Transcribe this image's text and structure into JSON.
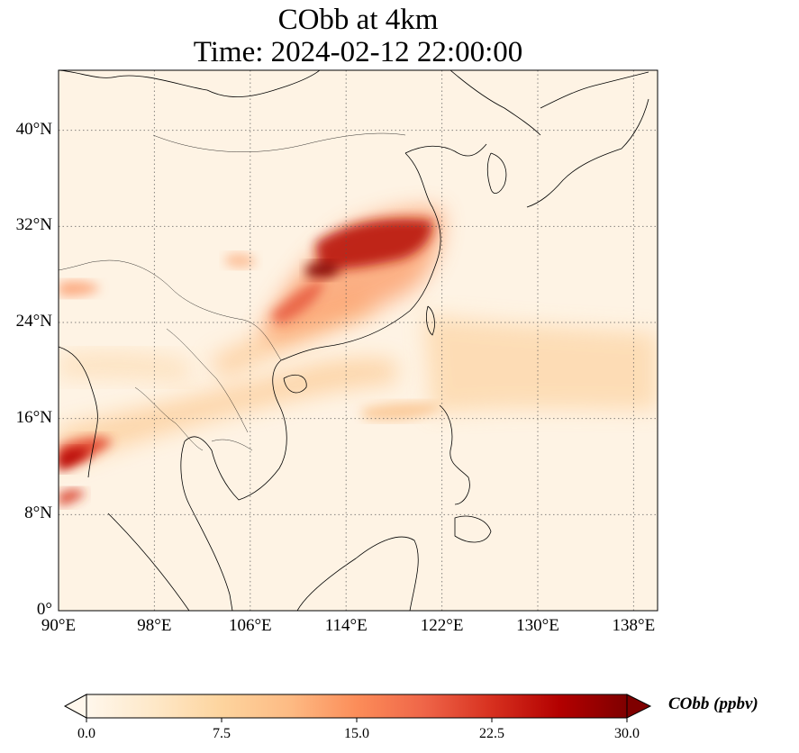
{
  "map": {
    "title_line1": "CObb at 4km",
    "title_line2": "Time: 2024-02-12 22:00:00",
    "lon_range": [
      90,
      140
    ],
    "lat_range": [
      0,
      45
    ],
    "x_ticks": [
      "90°E",
      "98°E",
      "106°E",
      "114°E",
      "122°E",
      "130°E",
      "138°E"
    ],
    "x_tick_values": [
      90,
      98,
      106,
      114,
      122,
      130,
      138
    ],
    "y_ticks": [
      "0°",
      "8°N",
      "16°N",
      "24°N",
      "32°N",
      "40°N"
    ],
    "y_tick_values": [
      0,
      8,
      16,
      24,
      32,
      40
    ],
    "gridlines": true,
    "colormap": "OrRd",
    "colorbar": {
      "label": "CObb (ppbv)",
      "min": 0.0,
      "max": 30.0,
      "ticks": [
        "0.0",
        "7.5",
        "15.0",
        "22.5",
        "30.0"
      ],
      "tick_values": [
        0,
        7.5,
        15,
        22.5,
        30
      ],
      "colors": [
        "#fff7ec",
        "#fee8c8",
        "#fdd49e",
        "#fdbb84",
        "#fc8d59",
        "#ef6548",
        "#d7301f",
        "#b30000",
        "#7f0000"
      ]
    }
  }
}
